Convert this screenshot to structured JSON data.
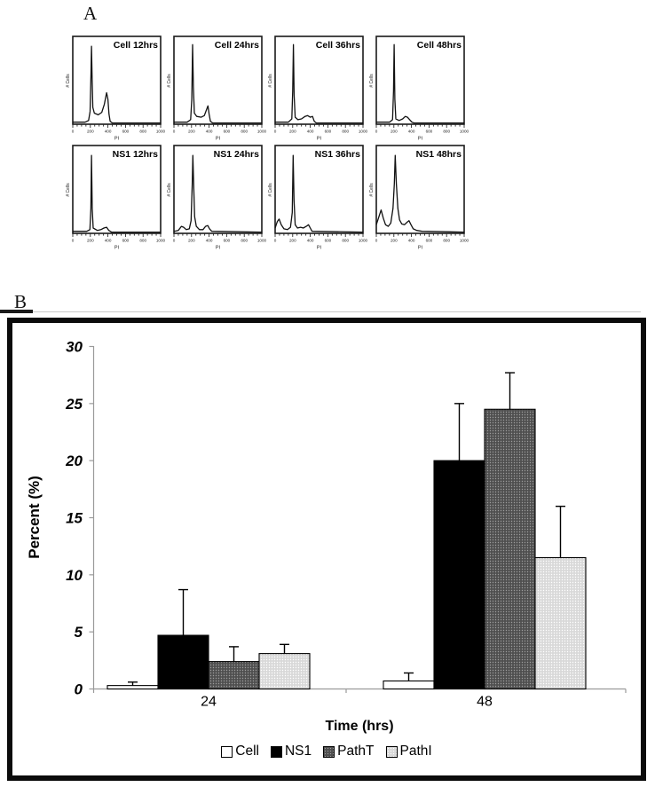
{
  "figure": {
    "panel_a_label": "A",
    "panel_b_label": "B"
  },
  "colors": {
    "curve": "#111111",
    "axis_gray": "#9a9a9a",
    "bar_black": "#000000",
    "bar_dark_gray": "#4f4f4f",
    "bar_light_gray": "#d9d9d9",
    "bar_white": "#ffffff",
    "frame_black": "#0b0b0b"
  },
  "chart_data": [
    {
      "type": "line",
      "panel": "A",
      "subtype": "flow-cytometry-histogram",
      "title": "Cell 12hrs",
      "xlabel": "PI",
      "ylabel": "# Cells",
      "xlim": [
        0,
        1000
      ],
      "x_ticks": [
        0,
        200,
        400,
        600,
        800,
        1000
      ],
      "y_units": "relative",
      "curve": [
        [
          0,
          0.02
        ],
        [
          140,
          0.02
        ],
        [
          180,
          0.04
        ],
        [
          197,
          0.15
        ],
        [
          207,
          0.6
        ],
        [
          213,
          0.95
        ],
        [
          220,
          0.55
        ],
        [
          228,
          0.2
        ],
        [
          245,
          0.13
        ],
        [
          290,
          0.11
        ],
        [
          330,
          0.14
        ],
        [
          360,
          0.24
        ],
        [
          385,
          0.38
        ],
        [
          400,
          0.3
        ],
        [
          412,
          0.12
        ],
        [
          425,
          0.03
        ],
        [
          450,
          0.01
        ],
        [
          1000,
          0.01
        ]
      ]
    },
    {
      "type": "line",
      "panel": "A",
      "subtype": "flow-cytometry-histogram",
      "title": "Cell 24hrs",
      "xlabel": "PI",
      "ylabel": "# Cells",
      "xlim": [
        0,
        1000
      ],
      "x_ticks": [
        0,
        200,
        400,
        600,
        800,
        1000
      ],
      "y_units": "relative",
      "curve": [
        [
          0,
          0.02
        ],
        [
          150,
          0.02
        ],
        [
          190,
          0.05
        ],
        [
          203,
          0.3
        ],
        [
          212,
          0.97
        ],
        [
          221,
          0.45
        ],
        [
          232,
          0.13
        ],
        [
          260,
          0.09
        ],
        [
          310,
          0.08
        ],
        [
          345,
          0.1
        ],
        [
          370,
          0.17
        ],
        [
          387,
          0.22
        ],
        [
          400,
          0.12
        ],
        [
          415,
          0.03
        ],
        [
          440,
          0.01
        ],
        [
          1000,
          0.01
        ]
      ]
    },
    {
      "type": "line",
      "panel": "A",
      "subtype": "flow-cytometry-histogram",
      "title": "Cell 36hrs",
      "xlabel": "PI",
      "ylabel": "# Cells",
      "xlim": [
        0,
        1000
      ],
      "x_ticks": [
        0,
        200,
        400,
        600,
        800,
        1000
      ],
      "y_units": "relative",
      "curve": [
        [
          0,
          0.02
        ],
        [
          150,
          0.02
        ],
        [
          190,
          0.06
        ],
        [
          200,
          0.4
        ],
        [
          208,
          0.97
        ],
        [
          216,
          0.35
        ],
        [
          228,
          0.08
        ],
        [
          260,
          0.05
        ],
        [
          300,
          0.06
        ],
        [
          340,
          0.09
        ],
        [
          370,
          0.1
        ],
        [
          400,
          0.08
        ],
        [
          425,
          0.09
        ],
        [
          445,
          0.03
        ],
        [
          470,
          0.01
        ],
        [
          1000,
          0.01
        ]
      ]
    },
    {
      "type": "line",
      "panel": "A",
      "subtype": "flow-cytometry-histogram",
      "title": "Cell 48hrs",
      "xlabel": "PI",
      "ylabel": "# Cells",
      "xlim": [
        0,
        1000
      ],
      "x_ticks": [
        0,
        200,
        400,
        600,
        800,
        1000
      ],
      "y_units": "relative",
      "curve": [
        [
          0,
          0.02
        ],
        [
          150,
          0.02
        ],
        [
          185,
          0.05
        ],
        [
          196,
          0.4
        ],
        [
          203,
          0.97
        ],
        [
          211,
          0.3
        ],
        [
          222,
          0.06
        ],
        [
          260,
          0.04
        ],
        [
          300,
          0.06
        ],
        [
          330,
          0.09
        ],
        [
          355,
          0.08
        ],
        [
          380,
          0.05
        ],
        [
          405,
          0.02
        ],
        [
          430,
          0.01
        ],
        [
          1000,
          0.01
        ]
      ]
    },
    {
      "type": "line",
      "panel": "A",
      "subtype": "flow-cytometry-histogram",
      "title": "NS1 12hrs",
      "xlabel": "PI",
      "ylabel": "# Cells",
      "xlim": [
        0,
        1000
      ],
      "x_ticks": [
        0,
        200,
        400,
        600,
        800,
        1000
      ],
      "y_units": "relative",
      "curve": [
        [
          0,
          0.02
        ],
        [
          160,
          0.02
        ],
        [
          195,
          0.04
        ],
        [
          206,
          0.3
        ],
        [
          213,
          0.95
        ],
        [
          221,
          0.3
        ],
        [
          232,
          0.06
        ],
        [
          280,
          0.03
        ],
        [
          320,
          0.04
        ],
        [
          355,
          0.06
        ],
        [
          385,
          0.07
        ],
        [
          410,
          0.03
        ],
        [
          440,
          0.01
        ],
        [
          1000,
          0.01
        ]
      ]
    },
    {
      "type": "line",
      "panel": "A",
      "subtype": "flow-cytometry-histogram",
      "title": "NS1 24hrs",
      "xlabel": "PI",
      "ylabel": "# Cells",
      "xlim": [
        0,
        1000
      ],
      "x_ticks": [
        0,
        200,
        400,
        600,
        800,
        1000
      ],
      "y_units": "relative",
      "curve": [
        [
          0,
          0.02
        ],
        [
          50,
          0.03
        ],
        [
          85,
          0.08
        ],
        [
          110,
          0.07
        ],
        [
          140,
          0.04
        ],
        [
          175,
          0.05
        ],
        [
          195,
          0.15
        ],
        [
          208,
          0.6
        ],
        [
          215,
          0.95
        ],
        [
          224,
          0.6
        ],
        [
          235,
          0.2
        ],
        [
          255,
          0.08
        ],
        [
          290,
          0.04
        ],
        [
          330,
          0.04
        ],
        [
          360,
          0.08
        ],
        [
          385,
          0.09
        ],
        [
          405,
          0.05
        ],
        [
          430,
          0.02
        ],
        [
          1000,
          0.01
        ]
      ]
    },
    {
      "type": "line",
      "panel": "A",
      "subtype": "flow-cytometry-histogram",
      "title": "NS1 36hrs",
      "xlabel": "PI",
      "ylabel": "# Cells",
      "xlim": [
        0,
        1000
      ],
      "x_ticks": [
        0,
        200,
        400,
        600,
        800,
        1000
      ],
      "y_units": "relative",
      "curve": [
        [
          0,
          0.06
        ],
        [
          25,
          0.14
        ],
        [
          45,
          0.17
        ],
        [
          70,
          0.1
        ],
        [
          100,
          0.05
        ],
        [
          140,
          0.04
        ],
        [
          175,
          0.07
        ],
        [
          195,
          0.25
        ],
        [
          205,
          0.95
        ],
        [
          215,
          0.4
        ],
        [
          228,
          0.1
        ],
        [
          255,
          0.06
        ],
        [
          290,
          0.07
        ],
        [
          320,
          0.06
        ],
        [
          355,
          0.08
        ],
        [
          380,
          0.1
        ],
        [
          400,
          0.06
        ],
        [
          420,
          0.02
        ],
        [
          1000,
          0.01
        ]
      ]
    },
    {
      "type": "line",
      "panel": "A",
      "subtype": "flow-cytometry-histogram",
      "title": "NS1 48hrs",
      "xlabel": "PI",
      "ylabel": "# Cells",
      "xlim": [
        0,
        1000
      ],
      "x_ticks": [
        0,
        200,
        400,
        600,
        800,
        1000
      ],
      "y_units": "relative",
      "curve": [
        [
          0,
          0.1
        ],
        [
          30,
          0.2
        ],
        [
          55,
          0.28
        ],
        [
          80,
          0.18
        ],
        [
          105,
          0.1
        ],
        [
          135,
          0.08
        ],
        [
          165,
          0.12
        ],
        [
          190,
          0.3
        ],
        [
          205,
          0.6
        ],
        [
          215,
          0.95
        ],
        [
          228,
          0.6
        ],
        [
          245,
          0.3
        ],
        [
          265,
          0.16
        ],
        [
          290,
          0.11
        ],
        [
          320,
          0.1
        ],
        [
          350,
          0.13
        ],
        [
          372,
          0.15
        ],
        [
          395,
          0.1
        ],
        [
          420,
          0.05
        ],
        [
          460,
          0.03
        ],
        [
          520,
          0.02
        ],
        [
          1000,
          0.01
        ]
      ]
    },
    {
      "type": "bar",
      "panel": "B",
      "categories": [
        "24",
        "48"
      ],
      "series": [
        {
          "name": "Cell",
          "fill_key": "white",
          "values": [
            0.3,
            0.7
          ],
          "errors_plus": [
            0.3,
            0.7
          ]
        },
        {
          "name": "NS1",
          "fill_key": "black",
          "values": [
            4.7,
            20.0
          ],
          "errors_plus": [
            4.0,
            5.0
          ]
        },
        {
          "name": "PathT",
          "fill_key": "dark-dotted",
          "values": [
            2.4,
            24.5
          ],
          "errors_plus": [
            1.3,
            3.2
          ]
        },
        {
          "name": "PathI",
          "fill_key": "light-dotted",
          "values": [
            3.1,
            11.5
          ],
          "errors_plus": [
            0.8,
            4.5
          ]
        }
      ],
      "xlabel": "Time (hrs)",
      "ylabel": "Percent (%)",
      "ylim": [
        0,
        30
      ],
      "y_ticks": [
        0,
        5,
        10,
        15,
        20,
        25,
        30
      ],
      "grid": false,
      "legend_position": "bottom",
      "error_bars": "plus-only"
    }
  ]
}
